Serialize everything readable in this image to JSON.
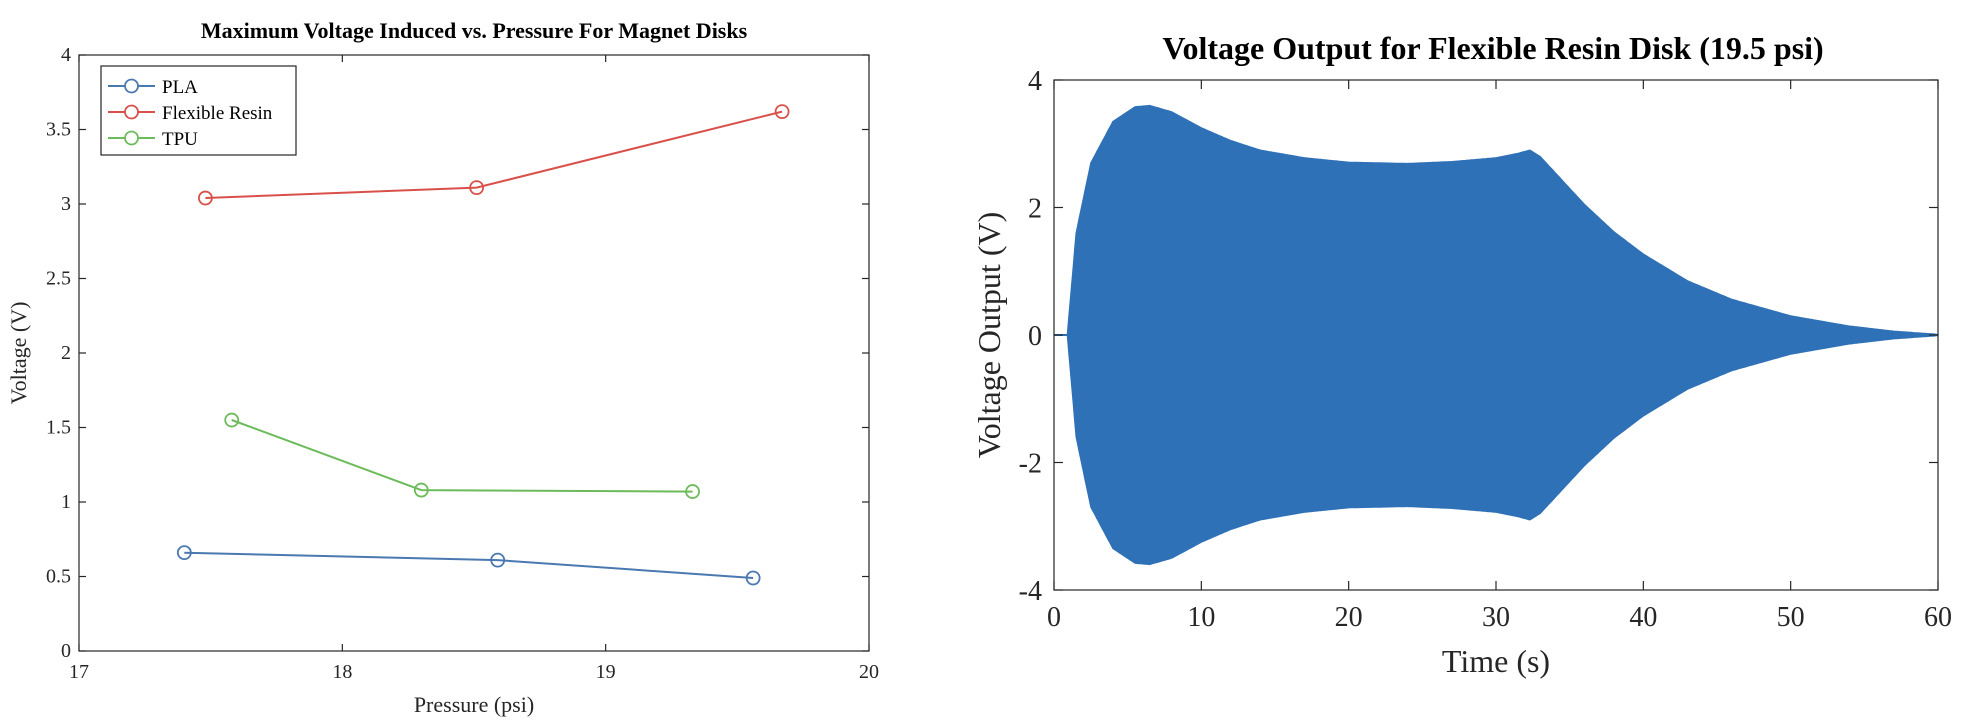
{
  "chart_data": [
    {
      "type": "line",
      "title": "Maximum Voltage Induced vs. Pressure For Magnet Disks",
      "xlabel": "Pressure (psi)",
      "ylabel": "Voltage (V)",
      "xlim": [
        17,
        20
      ],
      "ylim": [
        0,
        4
      ],
      "xticks": [
        "17",
        "18",
        "19",
        "20"
      ],
      "yticks": [
        "0",
        "0.5",
        "1",
        "1.5",
        "2",
        "2.5",
        "3",
        "3.5",
        "4"
      ],
      "grid": false,
      "legend_position": "top-left",
      "series": [
        {
          "name": "PLA",
          "color": "#4a78b0",
          "marker": "circle",
          "x": [
            17.4,
            18.59,
            19.56
          ],
          "y": [
            0.66,
            0.61,
            0.49
          ]
        },
        {
          "name": "Flexible Resin",
          "color": "#d9504a",
          "marker": "circle",
          "x": [
            17.48,
            18.51,
            19.67
          ],
          "y": [
            3.04,
            3.11,
            3.62
          ]
        },
        {
          "name": "TPU",
          "color": "#6cbb5a",
          "marker": "circle",
          "x": [
            17.58,
            18.3,
            19.33
          ],
          "y": [
            1.55,
            1.08,
            1.07
          ]
        }
      ]
    },
    {
      "type": "area",
      "title": "Voltage Output for Flexible Resin Disk (19.5 psi)",
      "xlabel": "Time (s)",
      "ylabel": "Voltage Output (V)",
      "xlim": [
        0,
        60
      ],
      "ylim": [
        -4,
        4
      ],
      "xticks": [
        "0",
        "10",
        "20",
        "30",
        "40",
        "50",
        "60"
      ],
      "yticks": [
        "-4",
        "-2",
        "0",
        "2",
        "4"
      ],
      "grid": false,
      "color": "#2f71b7",
      "description_of_shape": "symmetric oscillation envelope",
      "envelope": {
        "t": [
          0,
          0.9,
          1.5,
          2.5,
          4,
          5.5,
          6.5,
          8,
          10,
          12,
          14,
          17,
          20,
          24,
          27,
          30,
          31.5,
          32.3,
          33,
          34,
          36,
          38,
          40,
          43,
          46,
          50,
          54,
          57,
          60
        ],
        "amp": [
          0,
          0,
          1.6,
          2.7,
          3.35,
          3.58,
          3.6,
          3.5,
          3.25,
          3.05,
          2.9,
          2.78,
          2.71,
          2.69,
          2.72,
          2.78,
          2.85,
          2.9,
          2.8,
          2.55,
          2.05,
          1.62,
          1.27,
          0.85,
          0.56,
          0.3,
          0.14,
          0.06,
          0.01
        ]
      }
    }
  ]
}
